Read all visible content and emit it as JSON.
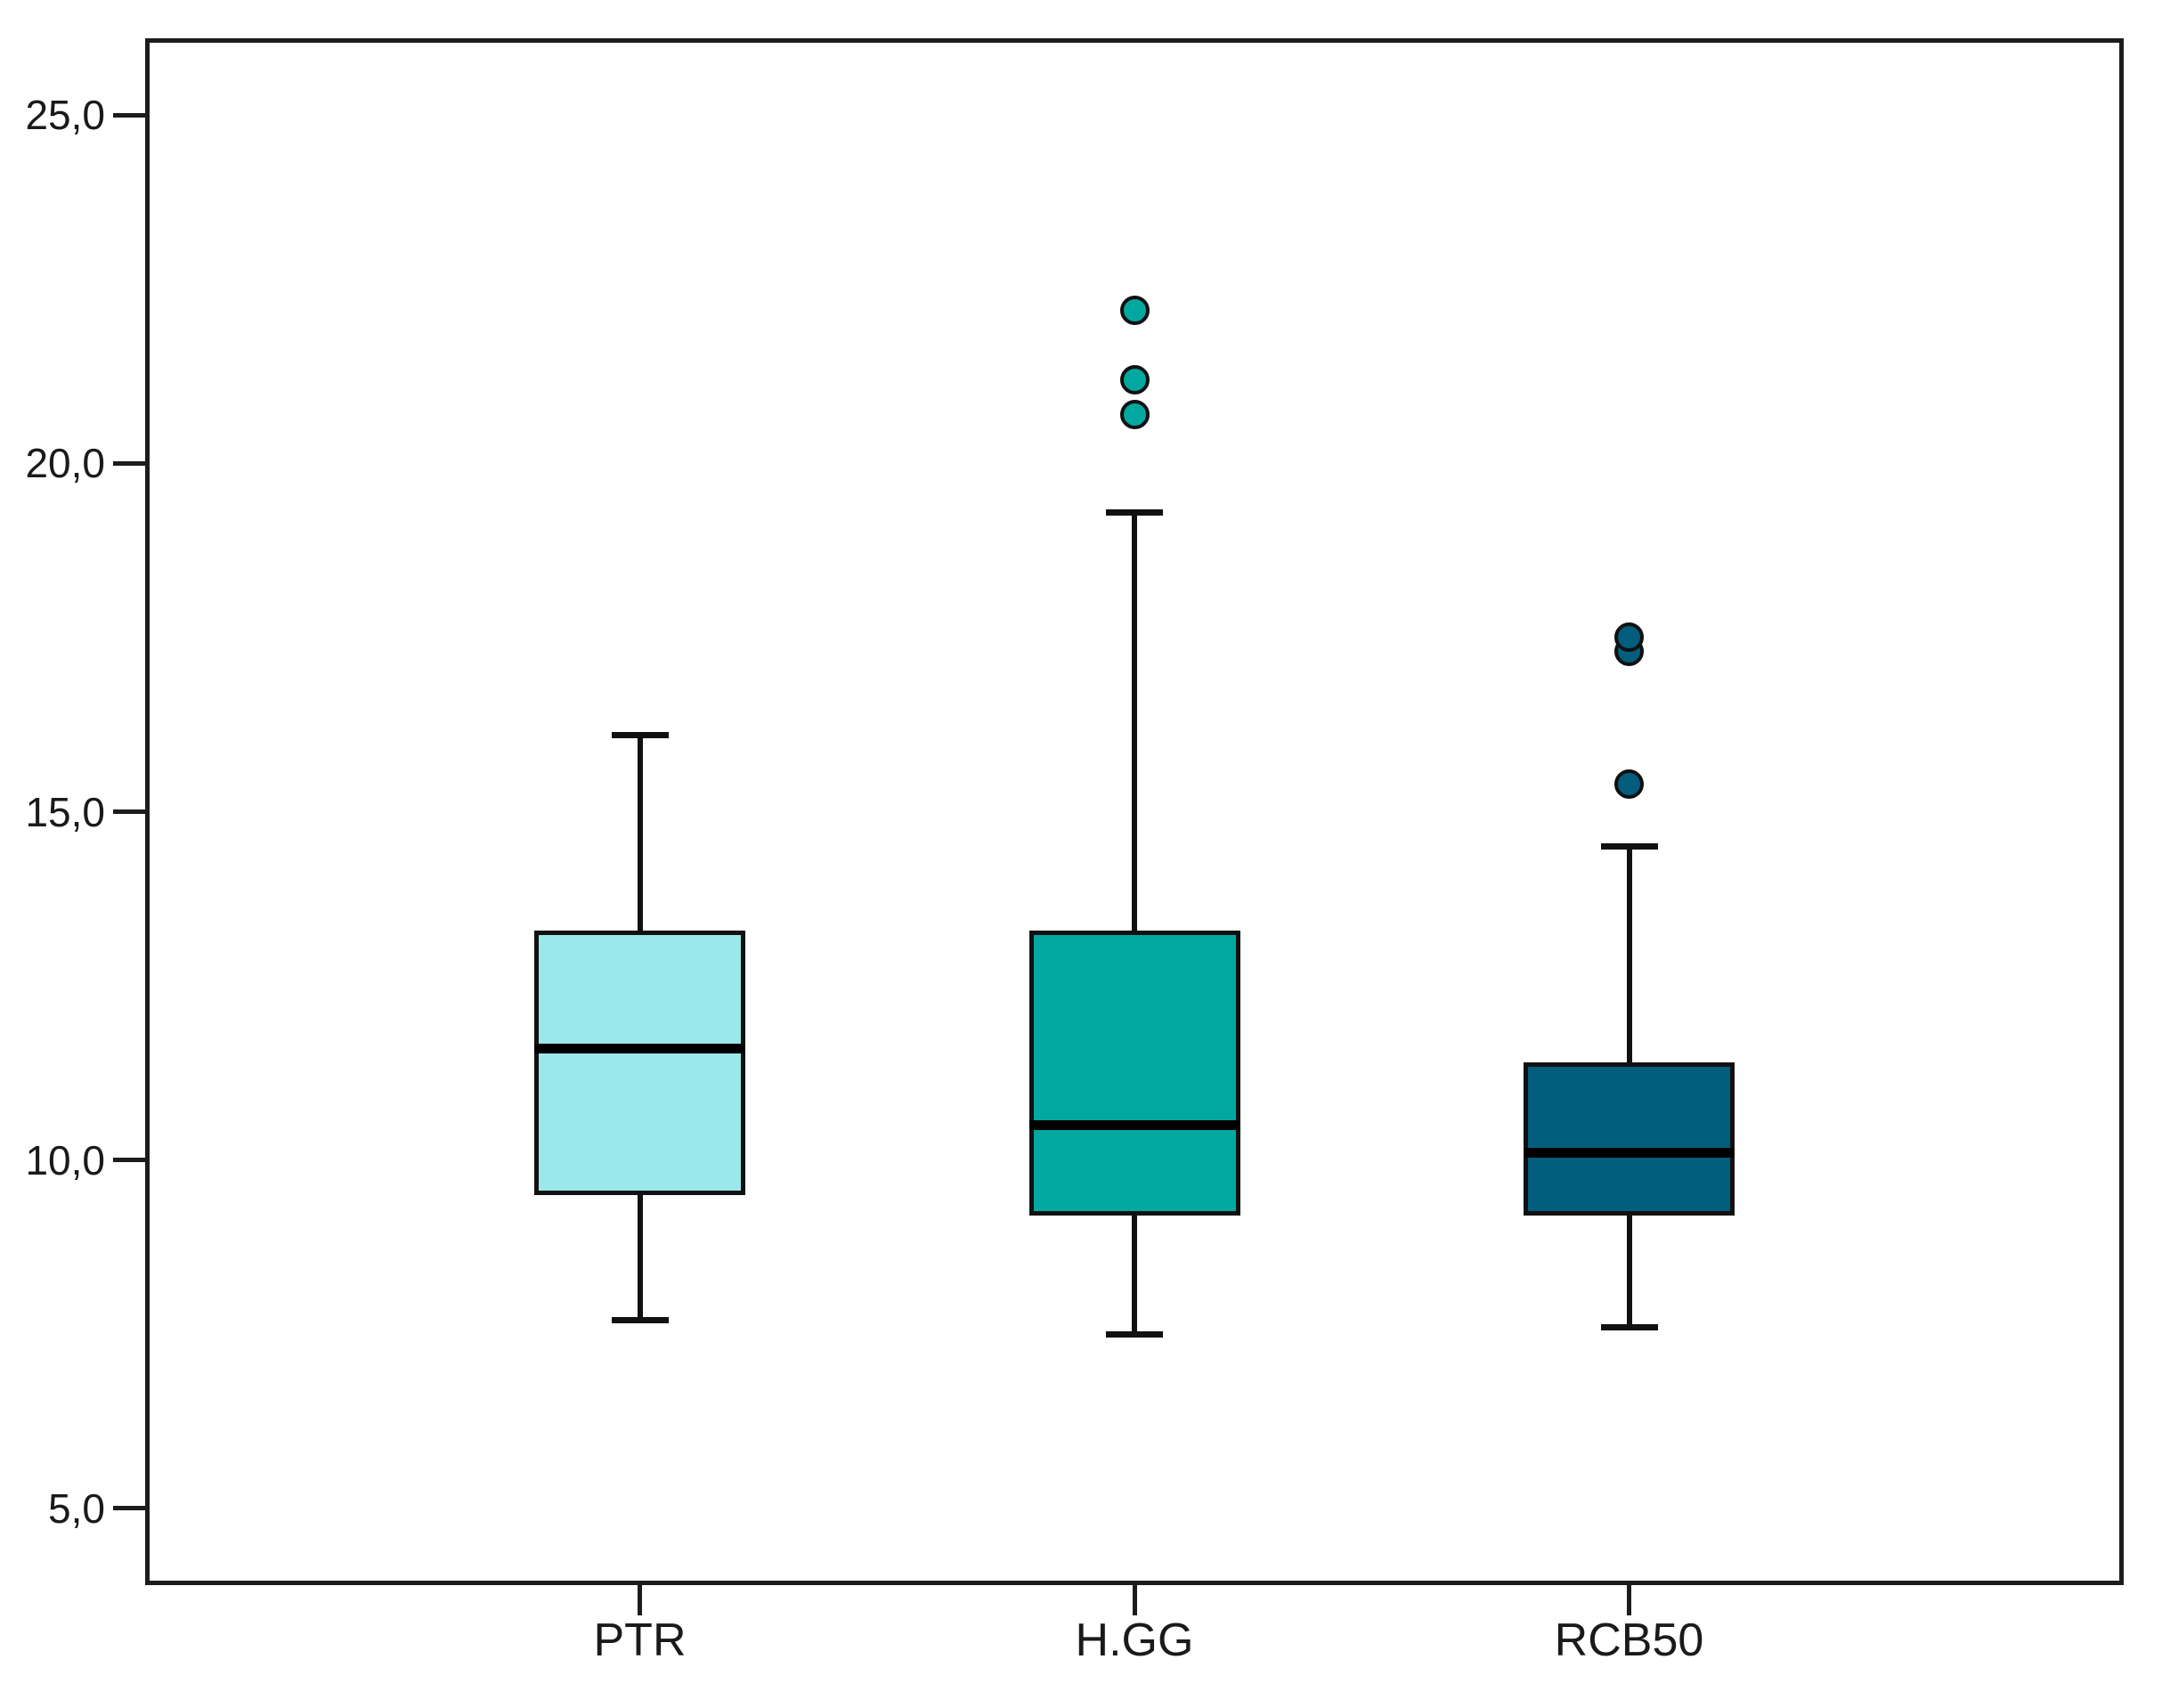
{
  "chart_data": {
    "type": "boxplot",
    "title": "",
    "xlabel": "",
    "ylabel": "",
    "grid": false,
    "legend": false,
    "background_color": "#ffffff",
    "frame_color": "#1c1c1c",
    "line_color": "#111111",
    "ylim": [
      3.9,
      26.1
    ],
    "yticks": [
      {
        "value": 5,
        "label": "5,0"
      },
      {
        "value": 10,
        "label": "10,0"
      },
      {
        "value": 15,
        "label": "15,0"
      },
      {
        "value": 20,
        "label": "20,0"
      },
      {
        "value": 25,
        "label": "25,0"
      }
    ],
    "categories": [
      "PTR",
      "H.GG",
      "RCB50"
    ],
    "series": [
      {
        "name": "PTR",
        "fill": "#9BE8EB",
        "whisker_low": 7.7,
        "q1": 9.5,
        "median": 11.6,
        "q3": 13.3,
        "whisker_high": 16.1,
        "outliers": []
      },
      {
        "name": "H.GG",
        "fill": "#00A8A0",
        "whisker_low": 7.5,
        "q1": 9.2,
        "median": 10.5,
        "q3": 13.3,
        "whisker_high": 19.3,
        "outliers": [
          20.7,
          21.2,
          22.2
        ]
      },
      {
        "name": "RCB50",
        "fill": "#035D7D",
        "whisker_low": 7.6,
        "q1": 9.2,
        "median": 10.1,
        "q3": 11.4,
        "whisker_high": 14.5,
        "outliers": [
          15.4,
          17.3,
          17.5
        ]
      }
    ]
  }
}
